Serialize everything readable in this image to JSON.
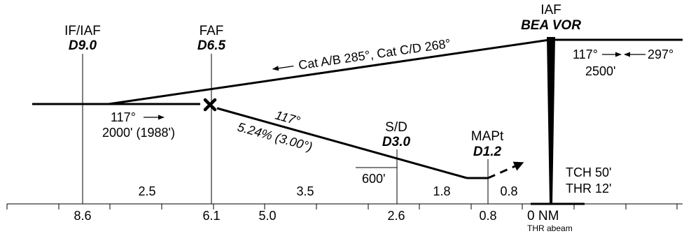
{
  "fixes": {
    "if_iaf": {
      "name": "IF/IAF",
      "dist": "D9.0"
    },
    "faf": {
      "name": "FAF",
      "dist": "D6.5"
    },
    "iaf_vor": {
      "name": "IAF",
      "dist": "BEA VOR"
    },
    "sd": {
      "name": "S/D",
      "dist": "D3.0"
    },
    "mapt": {
      "name": "MAPt",
      "dist": "D1.2"
    }
  },
  "labels": {
    "outbound": "Cat A/B 285°, Cat C/D 268°",
    "inbound_course": "117°",
    "inbound_alt": "2000' (1988')",
    "final_course": "117°",
    "gradient": "5.24% (3.00°)",
    "sd_alt": "600'",
    "vor_course_left": "117°",
    "vor_course_right": "297°",
    "vor_alt": "2500'",
    "tch": "TCH 50'",
    "thr": "THR 12'"
  },
  "segments": [
    "2.5",
    "3.5",
    "1.8",
    "0.8"
  ],
  "axis": {
    "ticks": [
      "8.6",
      "6.1",
      "5.0",
      "2.6",
      "0.8"
    ],
    "zero": "0 NM",
    "zero_sub": "THR abeam"
  },
  "icons": {
    "faf_marker": "maltese-cross-icon"
  }
}
